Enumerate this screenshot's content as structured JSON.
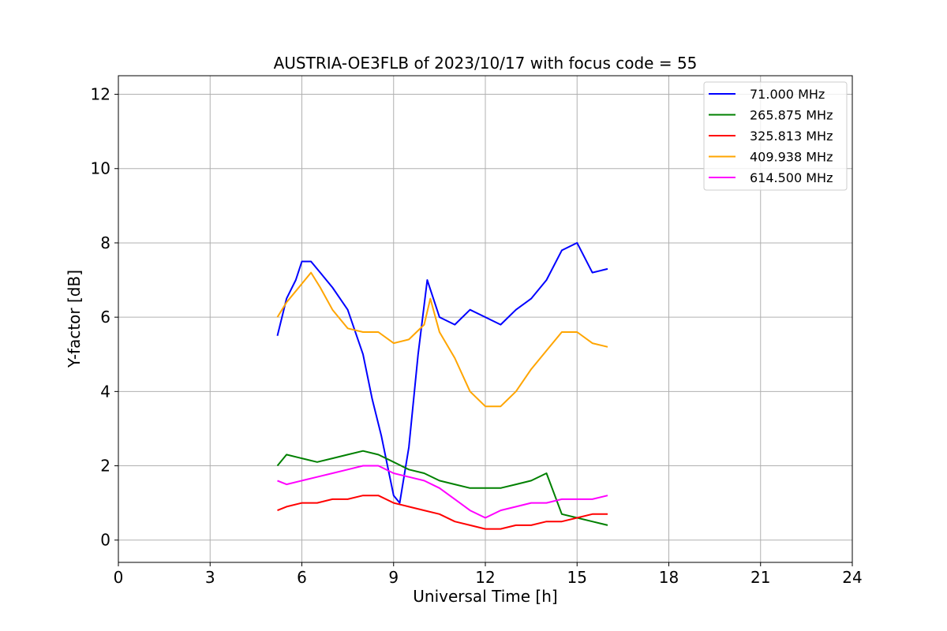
{
  "chart_data": {
    "type": "line",
    "title": "AUSTRIA-OE3FLB of 2023/10/17 with focus code = 55",
    "xlabel": "Universal Time [h]",
    "ylabel": "Y-factor [dB]",
    "xlim": [
      0,
      24
    ],
    "ylim": [
      -0.6,
      12.5
    ],
    "xticks": [
      0,
      3,
      6,
      9,
      12,
      15,
      18,
      21,
      24
    ],
    "yticks": [
      0,
      2,
      4,
      6,
      8,
      10,
      12
    ],
    "grid": true,
    "legend_position": "top-right",
    "series": [
      {
        "name": "71.000 MHz",
        "color": "#0000ff",
        "x": [
          5.2,
          5.5,
          5.8,
          6.0,
          6.3,
          6.6,
          7.0,
          7.5,
          8.0,
          8.3,
          8.6,
          8.8,
          9.0,
          9.2,
          9.5,
          9.8,
          10.1,
          10.5,
          11.0,
          11.5,
          12.0,
          12.5,
          13.0,
          13.5,
          14.0,
          14.5,
          15.0,
          15.5,
          16.0
        ],
        "values": [
          5.5,
          6.5,
          7.0,
          7.5,
          7.5,
          7.2,
          6.8,
          6.2,
          5.0,
          3.8,
          2.8,
          2.0,
          1.2,
          1.0,
          2.5,
          5.0,
          7.0,
          6.0,
          5.8,
          6.2,
          6.0,
          5.8,
          6.2,
          6.5,
          7.0,
          7.8,
          8.0,
          7.2,
          7.3
        ]
      },
      {
        "name": "265.875 MHz",
        "color": "#008000",
        "x": [
          5.2,
          5.5,
          6.0,
          6.5,
          7.0,
          7.5,
          8.0,
          8.5,
          9.0,
          9.5,
          10.0,
          10.5,
          11.0,
          11.5,
          12.0,
          12.5,
          13.0,
          13.5,
          14.0,
          14.5,
          15.0,
          15.5,
          16.0
        ],
        "values": [
          2.0,
          2.3,
          2.2,
          2.1,
          2.2,
          2.3,
          2.4,
          2.3,
          2.1,
          1.9,
          1.8,
          1.6,
          1.5,
          1.4,
          1.4,
          1.4,
          1.5,
          1.6,
          1.8,
          0.7,
          0.6,
          0.5,
          0.4
        ]
      },
      {
        "name": "325.813 MHz",
        "color": "#ff0000",
        "x": [
          5.2,
          5.5,
          6.0,
          6.5,
          7.0,
          7.5,
          8.0,
          8.5,
          9.0,
          9.5,
          10.0,
          10.5,
          11.0,
          11.5,
          12.0,
          12.5,
          13.0,
          13.5,
          14.0,
          14.5,
          15.0,
          15.5,
          16.0
        ],
        "values": [
          0.8,
          0.9,
          1.0,
          1.0,
          1.1,
          1.1,
          1.2,
          1.2,
          1.0,
          0.9,
          0.8,
          0.7,
          0.5,
          0.4,
          0.3,
          0.3,
          0.4,
          0.4,
          0.5,
          0.5,
          0.6,
          0.7,
          0.7
        ]
      },
      {
        "name": "409.938 MHz",
        "color": "#ffa500",
        "x": [
          5.2,
          5.5,
          6.0,
          6.3,
          6.6,
          7.0,
          7.5,
          8.0,
          8.5,
          9.0,
          9.5,
          10.0,
          10.2,
          10.5,
          11.0,
          11.5,
          12.0,
          12.5,
          13.0,
          13.5,
          14.0,
          14.5,
          15.0,
          15.5,
          16.0
        ],
        "values": [
          6.0,
          6.4,
          6.9,
          7.2,
          6.8,
          6.2,
          5.7,
          5.6,
          5.6,
          5.3,
          5.4,
          5.8,
          6.5,
          5.6,
          4.9,
          4.0,
          3.6,
          3.6,
          4.0,
          4.6,
          5.1,
          5.6,
          5.6,
          5.3,
          5.2
        ]
      },
      {
        "name": "614.500 MHz",
        "color": "#ff00ff",
        "x": [
          5.2,
          5.5,
          6.0,
          6.5,
          7.0,
          7.5,
          8.0,
          8.5,
          9.0,
          9.5,
          10.0,
          10.5,
          11.0,
          11.5,
          12.0,
          12.5,
          13.0,
          13.5,
          14.0,
          14.5,
          15.0,
          15.5,
          16.0
        ],
        "values": [
          1.6,
          1.5,
          1.6,
          1.7,
          1.8,
          1.9,
          2.0,
          2.0,
          1.8,
          1.7,
          1.6,
          1.4,
          1.1,
          0.8,
          0.6,
          0.8,
          0.9,
          1.0,
          1.0,
          1.1,
          1.1,
          1.1,
          1.2
        ]
      }
    ]
  }
}
